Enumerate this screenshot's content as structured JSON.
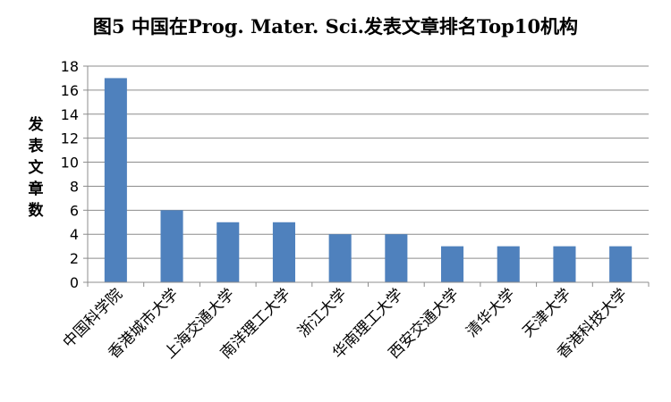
{
  "chart_data": {
    "type": "bar",
    "title": "图5 中国在Prog. Mater. Sci.发表文章排名Top10机构",
    "xlabel": "",
    "ylabel": "发表文章数",
    "ylim": [
      0,
      18
    ],
    "yticks": [
      0,
      2,
      4,
      6,
      8,
      10,
      12,
      14,
      16,
      18
    ],
    "grid": true,
    "legend": "none",
    "bar_color": "#4F81BD",
    "grid_color": "#8C8C8C",
    "categories": [
      "中国科学院",
      "香港城市大学",
      "上海交通大学",
      "南洋理工大学",
      "浙江大学",
      "华南理工大学",
      "西安交通大学",
      "清华大学",
      "天津大学",
      "香港科技大学"
    ],
    "values": [
      17,
      6,
      5,
      5,
      4,
      4,
      3,
      3,
      3,
      3
    ]
  }
}
